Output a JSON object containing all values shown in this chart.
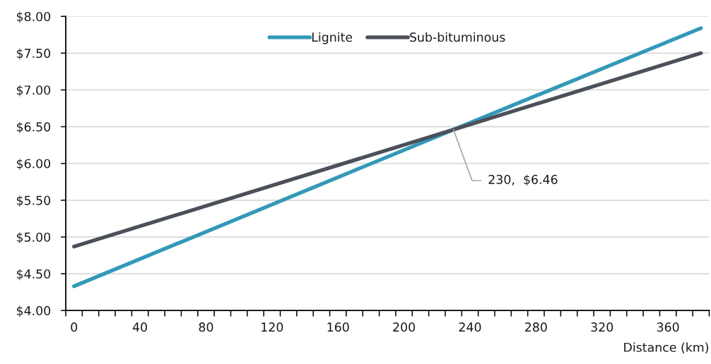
{
  "chart_data": {
    "type": "line",
    "xlabel": "Distance (km)",
    "x": [
      0,
      230,
      380
    ],
    "series": [
      {
        "name": "Lignite",
        "color": "#3399b8",
        "values": [
          4.33,
          6.46,
          7.84
        ]
      },
      {
        "name": "Sub-bituminous",
        "color": "#4b5059",
        "values": [
          4.87,
          6.46,
          7.5
        ]
      }
    ],
    "xlim": [
      -5,
      385
    ],
    "xticks": [
      0,
      40,
      80,
      120,
      160,
      200,
      240,
      280,
      320,
      360,
      {
        "value": -5,
        "label": null
      },
      {
        "value": 5,
        "label": null
      },
      {
        "value": 15,
        "label": null
      },
      {
        "value": 25,
        "label": null
      },
      {
        "value": 35,
        "label": null
      },
      {
        "value": 45,
        "label": null
      },
      {
        "value": 55,
        "label": null
      },
      {
        "value": 65,
        "label": null
      },
      {
        "value": 75,
        "label": null
      },
      {
        "value": 85,
        "label": null
      },
      {
        "value": 95,
        "label": null
      },
      {
        "value": 105,
        "label": null
      },
      {
        "value": 115,
        "label": null
      },
      {
        "value": 125,
        "label": null
      },
      {
        "value": 135,
        "label": null
      },
      {
        "value": 145,
        "label": null
      },
      {
        "value": 155,
        "label": null
      },
      {
        "value": 165,
        "label": null
      },
      {
        "value": 175,
        "label": null
      },
      {
        "value": 185,
        "label": null
      },
      {
        "value": 195,
        "label": null
      },
      {
        "value": 205,
        "label": null
      },
      {
        "value": 215,
        "label": null
      },
      {
        "value": 225,
        "label": null
      },
      {
        "value": 235,
        "label": null
      },
      {
        "value": 245,
        "label": null
      },
      {
        "value": 255,
        "label": null
      },
      {
        "value": 265,
        "label": null
      },
      {
        "value": 275,
        "label": null
      },
      {
        "value": 285,
        "label": null
      },
      {
        "value": 295,
        "label": null
      },
      {
        "value": 305,
        "label": null
      },
      {
        "value": 315,
        "label": null
      },
      {
        "value": 325,
        "label": null
      },
      {
        "value": 335,
        "label": null
      },
      {
        "value": 345,
        "label": null
      },
      {
        "value": 355,
        "label": null
      },
      {
        "value": 365,
        "label": null
      },
      {
        "value": 375,
        "label": null
      },
      {
        "value": 385,
        "label": null
      }
    ],
    "ylim": [
      4,
      8
    ],
    "yticks": [
      {
        "value": 4,
        "label": "$4.00"
      },
      {
        "value": 4.5,
        "label": "$4.50"
      },
      {
        "value": 5,
        "label": "$5.00"
      },
      {
        "value": 5.5,
        "label": "$5.50"
      },
      {
        "value": 6,
        "label": "$6.00"
      },
      {
        "value": 6.5,
        "label": "$6.50"
      },
      {
        "value": 7,
        "label": "$7.00"
      },
      {
        "value": 7.5,
        "label": "$7.50"
      },
      {
        "value": 8,
        "label": "$8.00"
      }
    ],
    "annotations": [
      {
        "text": "230,  $6.46",
        "x": 230,
        "y": 6.46
      }
    ],
    "grid": "y",
    "legend": "top",
    "marker": "none",
    "line_style": "solid"
  }
}
